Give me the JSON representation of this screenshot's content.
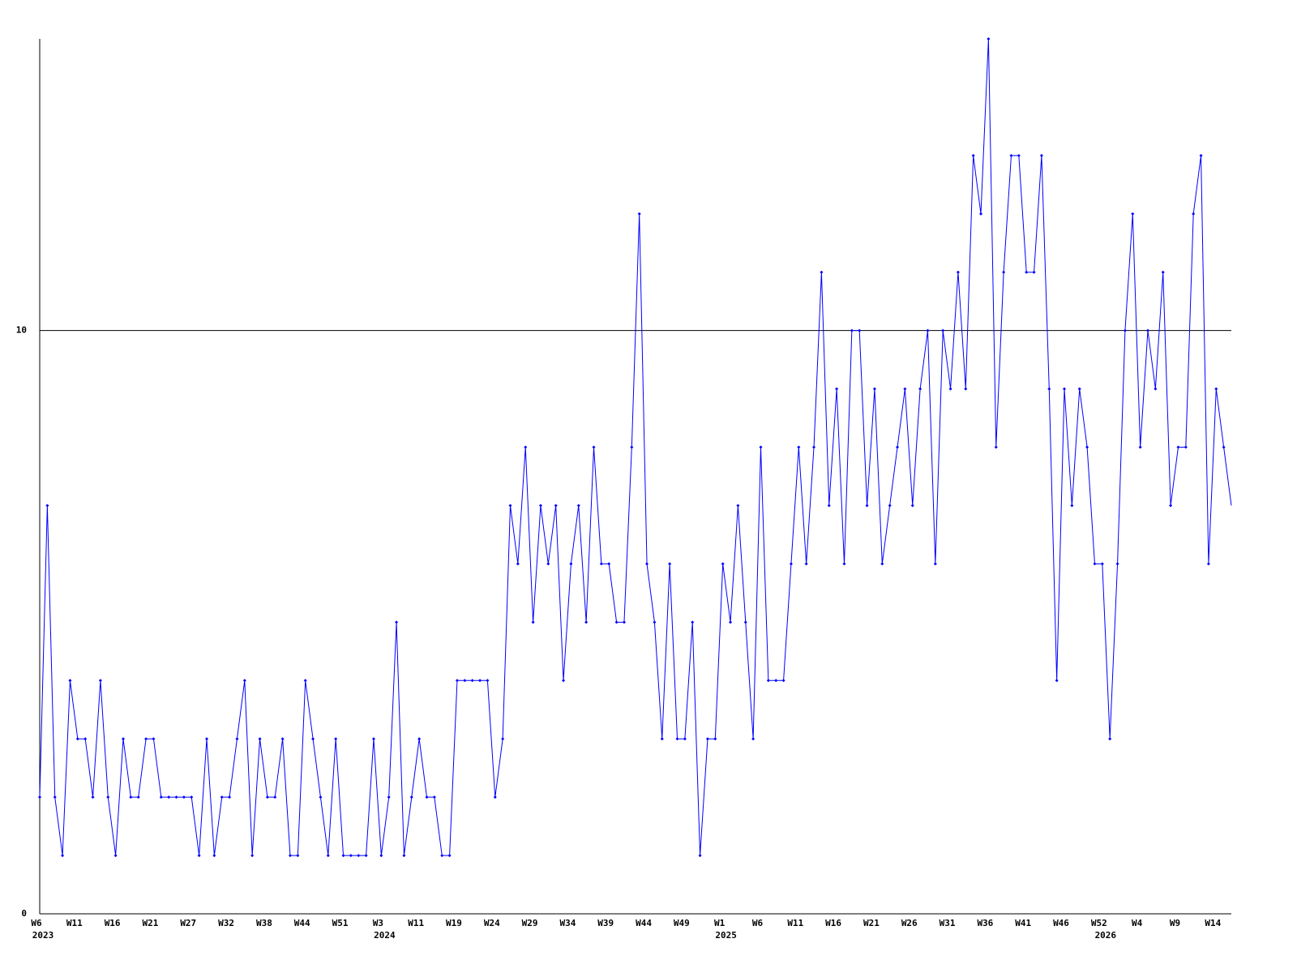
{
  "chart_data": {
    "type": "line",
    "categories": [
      "W6",
      null,
      null,
      null,
      null,
      "W11",
      null,
      null,
      null,
      null,
      "W16",
      null,
      null,
      null,
      null,
      "W21",
      null,
      null,
      null,
      null,
      "W27",
      null,
      null,
      null,
      null,
      "W32",
      null,
      null,
      null,
      null,
      "W38",
      null,
      null,
      null,
      null,
      "W44",
      null,
      null,
      null,
      null,
      "W51",
      null,
      null,
      null,
      null,
      "W3",
      null,
      null,
      null,
      null,
      "W11",
      null,
      null,
      null,
      null,
      "W19",
      null,
      null,
      null,
      null,
      "W24",
      null,
      null,
      null,
      null,
      "W29",
      null,
      null,
      null,
      null,
      "W34",
      null,
      null,
      null,
      null,
      "W39",
      null,
      null,
      null,
      null,
      "W44",
      null,
      null,
      null,
      null,
      "W49",
      null,
      null,
      null,
      null,
      "W1",
      null,
      null,
      null,
      null,
      "W6",
      null,
      null,
      null,
      null,
      "W11",
      null,
      null,
      null,
      null,
      "W16",
      null,
      null,
      null,
      null,
      "W21",
      null,
      null,
      null,
      null,
      "W26",
      null,
      null,
      null,
      null,
      "W31",
      null,
      null,
      null,
      null,
      "W36",
      null,
      null,
      null,
      null,
      "W41",
      null,
      null,
      null,
      null,
      "W46",
      null,
      null,
      null,
      null,
      "W52",
      null,
      null,
      null,
      null,
      "W4",
      null,
      null,
      null,
      null,
      "W9",
      null,
      null,
      null,
      null,
      "W14",
      null,
      null
    ],
    "years": [
      "2023",
      null,
      null,
      null,
      null,
      null,
      null,
      null,
      null,
      null,
      null,
      null,
      null,
      null,
      null,
      null,
      null,
      null,
      null,
      null,
      null,
      null,
      null,
      null,
      null,
      null,
      null,
      null,
      null,
      null,
      null,
      null,
      null,
      null,
      null,
      null,
      null,
      null,
      null,
      null,
      null,
      null,
      null,
      null,
      null,
      "2024",
      null,
      null,
      null,
      null,
      null,
      null,
      null,
      null,
      null,
      null,
      null,
      null,
      null,
      null,
      null,
      null,
      null,
      null,
      null,
      null,
      null,
      null,
      null,
      null,
      null,
      null,
      null,
      null,
      null,
      null,
      null,
      null,
      null,
      null,
      null,
      null,
      null,
      null,
      null,
      null,
      null,
      null,
      null,
      null,
      "2025",
      null,
      null,
      null,
      null,
      null,
      null,
      null,
      null,
      null,
      null,
      null,
      null,
      null,
      null,
      null,
      null,
      null,
      null,
      null,
      null,
      null,
      null,
      null,
      null,
      null,
      null,
      null,
      null,
      null,
      null,
      null,
      null,
      null,
      null,
      null,
      null,
      null,
      null,
      null,
      null,
      null,
      null,
      null,
      null,
      null,
      null,
      null,
      null,
      null,
      "2026",
      null,
      null,
      null,
      null,
      null,
      null,
      null,
      null,
      null,
      null,
      null,
      null,
      null,
      null,
      null,
      null,
      null
    ],
    "series": [
      {
        "color": "#0000ff",
        "values": [
          2,
          7,
          2,
          1,
          4,
          3,
          3,
          2,
          4,
          2,
          1,
          3,
          2,
          2,
          3,
          3,
          2,
          2,
          2,
          2,
          2,
          1,
          3,
          1,
          2,
          2,
          3,
          4,
          1,
          3,
          2,
          2,
          3,
          1,
          1,
          4,
          3,
          2,
          1,
          3,
          1,
          1,
          1,
          1,
          3,
          1,
          2,
          5,
          1,
          2,
          3,
          2,
          2,
          1,
          1,
          4,
          4,
          4,
          4,
          4,
          2,
          3,
          7,
          6,
          8,
          5,
          7,
          6,
          7,
          4,
          6,
          7,
          5,
          8,
          6,
          6,
          5,
          5,
          8,
          12,
          6,
          5,
          3,
          6,
          3,
          3,
          5,
          1,
          3,
          3,
          6,
          5,
          7,
          5,
          3,
          8,
          4,
          4,
          4,
          6,
          8,
          6,
          8,
          11,
          7,
          9,
          6,
          10,
          10,
          7,
          9,
          6,
          7,
          8,
          9,
          7,
          9,
          10,
          6,
          10,
          9,
          11,
          9,
          13,
          12,
          15,
          8,
          11,
          13,
          13,
          11,
          11,
          13,
          9,
          4,
          9,
          7,
          9,
          8,
          6,
          6,
          3,
          6,
          10,
          12,
          8,
          10,
          9,
          11,
          7,
          8,
          8,
          12,
          13,
          6,
          9,
          8,
          7
        ]
      }
    ],
    "ylim": [
      0,
      15
    ],
    "yticks": [
      0,
      10
    ],
    "grid": true
  }
}
